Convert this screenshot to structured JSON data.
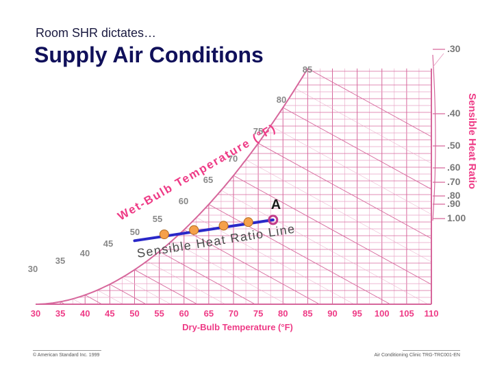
{
  "header": {
    "subtitle": "Room SHR dictates…",
    "title": "Supply Air Conditions"
  },
  "chart_data": {
    "type": "psychrometric",
    "db_ticks": [
      30,
      35,
      40,
      45,
      50,
      55,
      60,
      65,
      70,
      75,
      80,
      85,
      90,
      95,
      100,
      105,
      110
    ],
    "db_tick_labels": [
      "30",
      "35",
      "40",
      "45",
      "50",
      "55",
      "60",
      "65",
      "70",
      "75",
      "80",
      "85",
      "90",
      "95",
      "100",
      "105",
      "110"
    ],
    "xlabel": "Dry-Bulb Temperature (°F)",
    "wb_labels": [
      "30",
      "35",
      "40",
      "45",
      "50",
      "55",
      "60",
      "65",
      "70",
      "75",
      "80",
      "85"
    ],
    "wb_axis_label": "Wet-Bulb Temperature (°F)",
    "shr_labels": [
      ".30",
      ".40",
      ".50",
      ".60",
      ".70",
      ".80",
      ".90",
      "1.00"
    ],
    "shr_axis_label": "Sensible Heat Ratio",
    "process_line_label": "Sensible Heat Ratio Line",
    "point_label": "A",
    "process_points": [
      {
        "db": 56,
        "wb": 52
      },
      {
        "db": 62,
        "wb": 54.5
      },
      {
        "db": 68,
        "wb": 57
      },
      {
        "db": 73,
        "wb": 59
      }
    ],
    "room_point": {
      "db": 78,
      "wb": 60
    },
    "colors": {
      "grid": "#d6669b",
      "grid_light": "#e8a2c4",
      "label": "#ee3b86",
      "title": "#10105a",
      "process_line": "#2a28c8",
      "point_fill": "#f5a04a",
      "room_point": "#c23a8a"
    }
  },
  "footer": {
    "left": "© American Standard Inc. 1999",
    "right": "Air Conditioning Clinic TRG-TRC001-EN"
  }
}
